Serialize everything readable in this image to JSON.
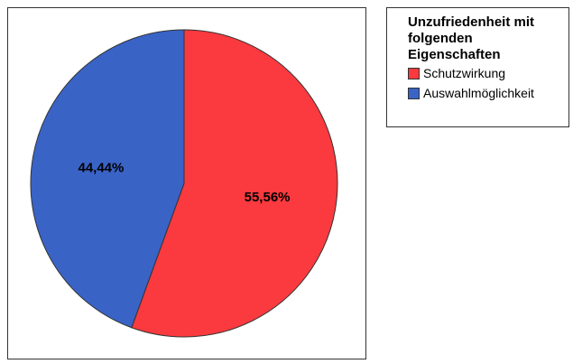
{
  "chart_data": {
    "type": "pie",
    "legend_title": "Unzufriedenheit mit folgenden Eigenschaften",
    "categories": [
      "Schutzwirkung",
      "Auswahlmöglichkeit"
    ],
    "values": [
      55.56,
      44.44
    ],
    "value_labels": [
      "55,56%",
      "44,44%"
    ],
    "colors": [
      "#fa3a3e",
      "#3a63c6"
    ],
    "start_angle": 0,
    "direction": "clockwise",
    "legend": "top-right"
  }
}
